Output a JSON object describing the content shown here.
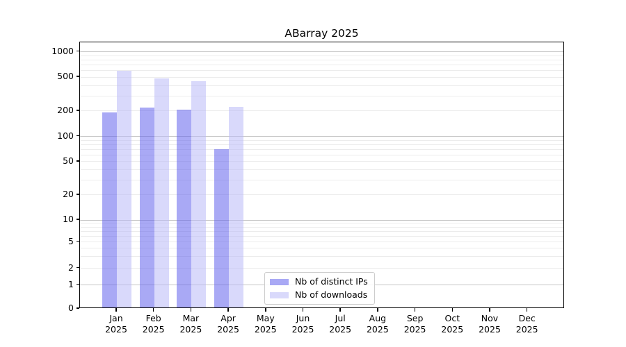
{
  "chart_data": {
    "type": "bar",
    "title": "ABarray 2025",
    "categories": [
      "Jan 2025",
      "Feb 2025",
      "Mar 2025",
      "Apr 2025",
      "May 2025",
      "Jun 2025",
      "Jul 2025",
      "Aug 2025",
      "Sep 2025",
      "Oct 2025",
      "Nov 2025",
      "Dec 2025"
    ],
    "months": [
      "Jan",
      "Feb",
      "Mar",
      "Apr",
      "May",
      "Jun",
      "Jul",
      "Aug",
      "Sep",
      "Oct",
      "Nov",
      "Dec"
    ],
    "year": "2025",
    "series": [
      {
        "name": "Nb of distinct IPs",
        "color": "#a9a9f5",
        "fill_rgba": "rgba(99,99,237,0.55)",
        "values": [
          190,
          220,
          205,
          70,
          null,
          null,
          null,
          null,
          null,
          null,
          null,
          null
        ]
      },
      {
        "name": "Nb of downloads",
        "color": "#d9d9f9",
        "fill_rgba": "rgba(185,185,248,0.55)",
        "values": [
          600,
          485,
          445,
          225,
          null,
          null,
          null,
          null,
          null,
          null,
          null,
          null
        ]
      }
    ],
    "y_axis": {
      "scale": "symlog",
      "tick_labels": [
        "0",
        "1",
        "2",
        "5",
        "10",
        "20",
        "50",
        "100",
        "200",
        "500",
        "1000"
      ],
      "tick_values": [
        0,
        1,
        2,
        5,
        10,
        20,
        50,
        100,
        200,
        500,
        1000
      ],
      "major_grid_values": [
        1,
        10,
        100,
        1000
      ],
      "minor_grid_values": [
        2,
        3,
        4,
        5,
        6,
        7,
        8,
        9,
        20,
        30,
        40,
        50,
        60,
        70,
        80,
        90,
        200,
        300,
        400,
        500,
        600,
        700,
        800,
        900
      ],
      "major_grid_color": "#c6c6c6",
      "minor_grid_color": "#ececec"
    },
    "legend": {
      "position": "bottom-center",
      "entries": [
        "Nb of distinct IPs",
        "Nb of downloads"
      ]
    }
  }
}
